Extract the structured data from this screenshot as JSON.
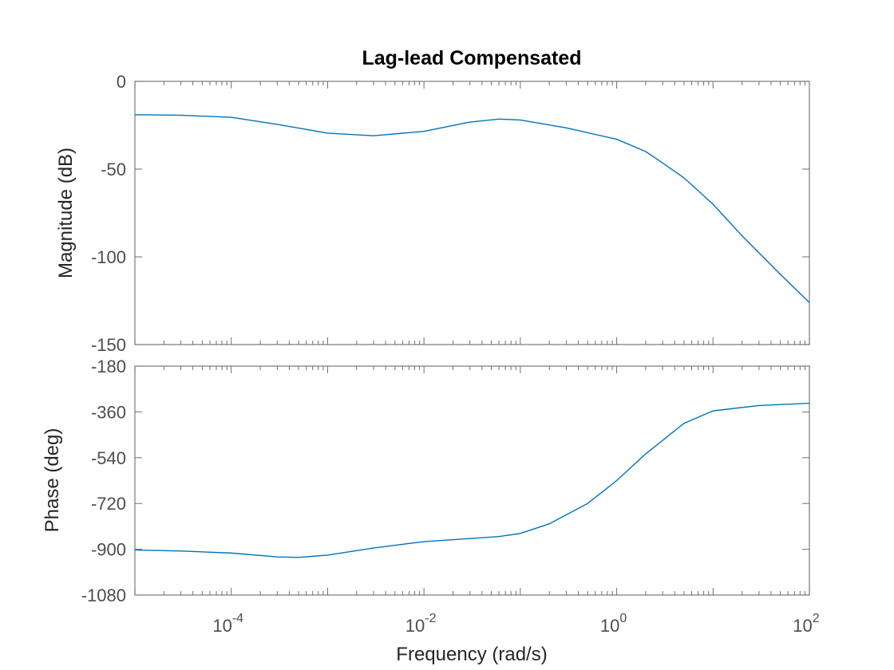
{
  "chart_data": {
    "type": "line",
    "title": "Lag-lead Compensated",
    "xlabel": "Frequency  (rad/s)",
    "xscale": "log",
    "xlim": [
      1e-05,
      100
    ],
    "x_ticks": [
      {
        "value": 0.0001,
        "base": "10",
        "exp": "-4"
      },
      {
        "value": 0.01,
        "base": "10",
        "exp": "-2"
      },
      {
        "value": 1,
        "base": "10",
        "exp": "0"
      },
      {
        "value": 100,
        "base": "10",
        "exp": "2"
      }
    ],
    "line_color": "#0072bd",
    "grid": false,
    "panels": [
      {
        "ylabel": "Magnitude (dB)",
        "ylim": [
          -150,
          0
        ],
        "yticks": [
          0,
          -50,
          -100,
          -150
        ],
        "series": [
          {
            "x": [
              1e-05,
              3e-05,
              0.0001,
              0.0003,
              0.001,
              0.003,
              0.01,
              0.03,
              0.06,
              0.1,
              0.3,
              1,
              2,
              3,
              5,
              10,
              20,
              50,
              100
            ],
            "y": [
              -19,
              -19.3,
              -20.5,
              -24.5,
              -29.5,
              -31,
              -28.5,
              -23.2,
              -21.5,
              -22,
              -26.5,
              -33,
              -40,
              -46.5,
              -55,
              -70,
              -88,
              -110,
              -126
            ]
          }
        ]
      },
      {
        "ylabel": "Phase (deg)",
        "ylim": [
          -1080,
          -180
        ],
        "yticks": [
          -180,
          -360,
          -540,
          -720,
          -900,
          -1080
        ],
        "series": [
          {
            "x": [
              1e-05,
              3e-05,
              0.0001,
              0.0003,
              0.0005,
              0.001,
              0.003,
              0.01,
              0.03,
              0.06,
              0.1,
              0.2,
              0.5,
              1,
              2,
              5,
              10,
              30,
              100
            ],
            "y": [
              -903,
              -907,
              -915,
              -930,
              -932,
              -923,
              -895,
              -870,
              -858,
              -850,
              -838,
              -800,
              -720,
              -630,
              -525,
              -405,
              -356,
              -335,
              -326
            ]
          }
        ]
      }
    ]
  }
}
